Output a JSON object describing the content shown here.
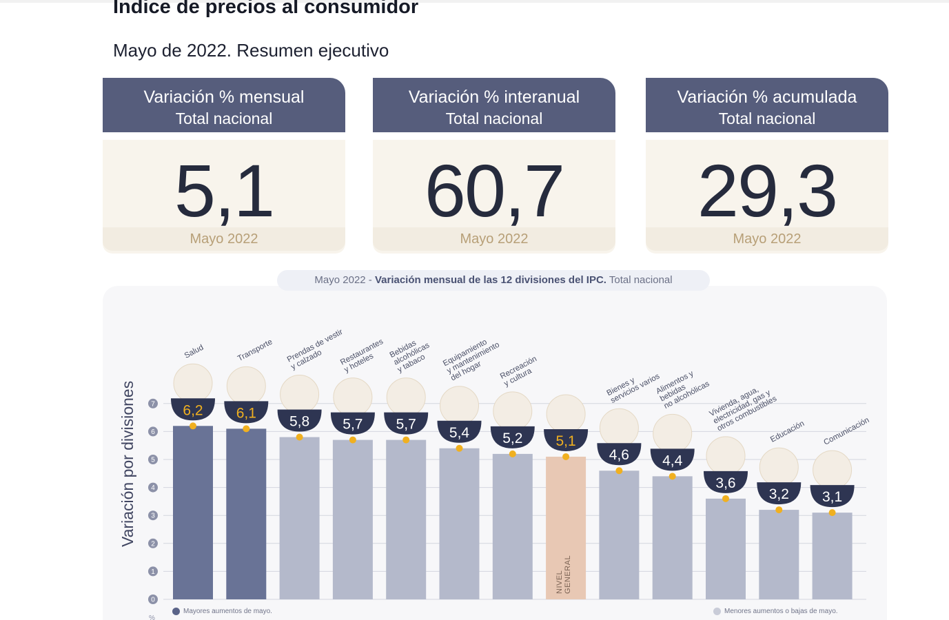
{
  "header": {
    "title": "Índice de precios al consumidor",
    "subtitle": "Mayo de 2022. Resumen ejecutivo"
  },
  "cards": [
    {
      "line1": "Variación % mensual",
      "line2": "Total nacional",
      "value": "5,1",
      "date": "Mayo 2022"
    },
    {
      "line1": "Variación % interanual",
      "line2": "Total nacional",
      "value": "60,7",
      "date": "Mayo 2022"
    },
    {
      "line1": "Variación % acumulada",
      "line2": "Total nacional",
      "value": "29,3",
      "date": "Mayo 2022"
    }
  ],
  "chart_title": {
    "period": "Mayo 2022 -",
    "main": "Variación mensual de las 12 divisiones del IPC.",
    "scope": "Total nacional"
  },
  "legend": {
    "high": "Mayores aumentos de mayo.",
    "low": "Menores aumentos o bajas de mayo."
  },
  "colors": {
    "high_bar": "#697396",
    "low_bar": "#b4b9cb",
    "general_bar": "#e8c8b4",
    "marker": "#f0b020",
    "label_badge": "#2e3552",
    "header_bg": "#565d7c"
  },
  "chart_data": {
    "type": "bar",
    "ylabel": "Variación por divisiones",
    "yunit": "%",
    "ylim": [
      0,
      7
    ],
    "yticks": [
      0,
      1,
      2,
      3,
      4,
      5,
      6,
      7
    ],
    "grid": true,
    "legend_position": "bottom",
    "general_bar_label": [
      "NIVEL",
      "GENERAL"
    ],
    "categories": [
      {
        "label": [
          "Salud"
        ],
        "value": 6.2,
        "display": "6,2",
        "group": "high",
        "icon": "first-aid-icon"
      },
      {
        "label": [
          "Transporte"
        ],
        "value": 6.1,
        "display": "6,1",
        "group": "high",
        "icon": "train-icon"
      },
      {
        "label": [
          "Prendas de vestir",
          "y calzado"
        ],
        "value": 5.8,
        "display": "5,8",
        "group": "low",
        "icon": "tshirt-icon"
      },
      {
        "label": [
          "Restaurantes",
          "y hoteles"
        ],
        "value": 5.7,
        "display": "5,7",
        "group": "low",
        "icon": "cutlery-icon"
      },
      {
        "label": [
          "Bebidas",
          "alcohólicas",
          "y tabaco"
        ],
        "value": 5.7,
        "display": "5,7",
        "group": "low",
        "icon": "bottle-icon"
      },
      {
        "label": [
          "Equipamiento",
          "y mantenimiento",
          "del hogar"
        ],
        "value": 5.4,
        "display": "5,4",
        "group": "low",
        "icon": "washing-machine-icon"
      },
      {
        "label": [
          "Recreación",
          "y cultura"
        ],
        "value": 5.2,
        "display": "5,2",
        "group": "low",
        "icon": "beach-umbrella-icon"
      },
      {
        "label": [],
        "value": 5.1,
        "display": "5,1",
        "group": "general",
        "icon": "shopping-basket-icon"
      },
      {
        "label": [
          "Bienes y",
          "servicios varios"
        ],
        "value": 4.6,
        "display": "4,6",
        "group": "low",
        "icon": "scissors-comb-icon"
      },
      {
        "label": [
          "Alimentos y",
          "bebidas",
          "no alcohólicas"
        ],
        "value": 4.4,
        "display": "4,4",
        "group": "low",
        "icon": "roast-chicken-icon"
      },
      {
        "label": [
          "Vivienda, agua,",
          "electricidad, gas y",
          "otros combustibles"
        ],
        "value": 3.6,
        "display": "3,6",
        "group": "low",
        "icon": "lightbulb-icon"
      },
      {
        "label": [
          "Educación"
        ],
        "value": 3.2,
        "display": "3,2",
        "group": "low",
        "icon": "book-icon"
      },
      {
        "label": [
          "Comunicación"
        ],
        "value": 3.1,
        "display": "3,1",
        "group": "low",
        "icon": "mobile-phone-icon"
      }
    ]
  }
}
